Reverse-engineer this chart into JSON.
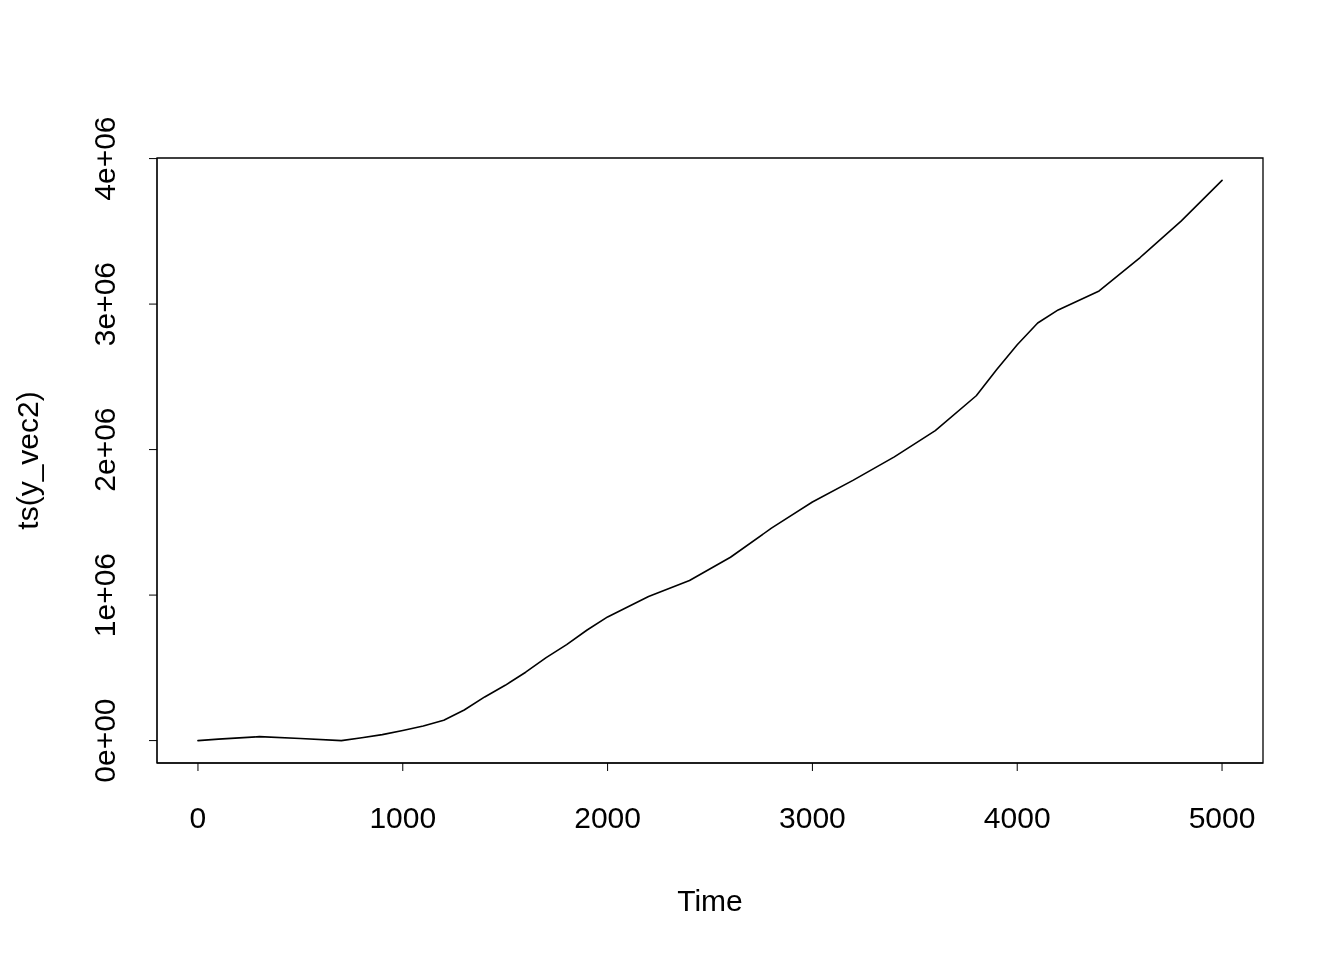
{
  "chart_data": {
    "type": "line",
    "xlabel": "Time",
    "ylabel": "ts(y_vec2)",
    "color": "#000000",
    "x": [
      0,
      100,
      300,
      500,
      700,
      800,
      900,
      1000,
      1100,
      1200,
      1300,
      1400,
      1500,
      1600,
      1700,
      1800,
      1900,
      2000,
      2200,
      2400,
      2600,
      2800,
      3000,
      3200,
      3400,
      3600,
      3800,
      3900,
      4000,
      4100,
      4200,
      4400,
      4600,
      4800,
      5000
    ],
    "values": [
      0,
      10000,
      27000,
      14000,
      0,
      20000,
      41000,
      69000,
      100000,
      140000,
      210000,
      300000,
      380000,
      470000,
      570000,
      660000,
      760000,
      850000,
      990000,
      1100000,
      1260000,
      1460000,
      1640000,
      1790000,
      1950000,
      2130000,
      2370000,
      2550000,
      2720000,
      2870000,
      2960000,
      3090000,
      3320000,
      3570000,
      3850000
    ],
    "xlim": [
      -200,
      5200
    ],
    "ylim": [
      -154000,
      4004000
    ],
    "xticks": [
      0,
      1000,
      2000,
      3000,
      4000,
      5000
    ],
    "yticks": [
      {
        "value": 0,
        "label": "0e+00"
      },
      {
        "value": 1000000,
        "label": "1e+06"
      },
      {
        "value": 2000000,
        "label": "2e+06"
      },
      {
        "value": 3000000,
        "label": "3e+06"
      },
      {
        "value": 4000000,
        "label": "4e+06"
      }
    ]
  }
}
